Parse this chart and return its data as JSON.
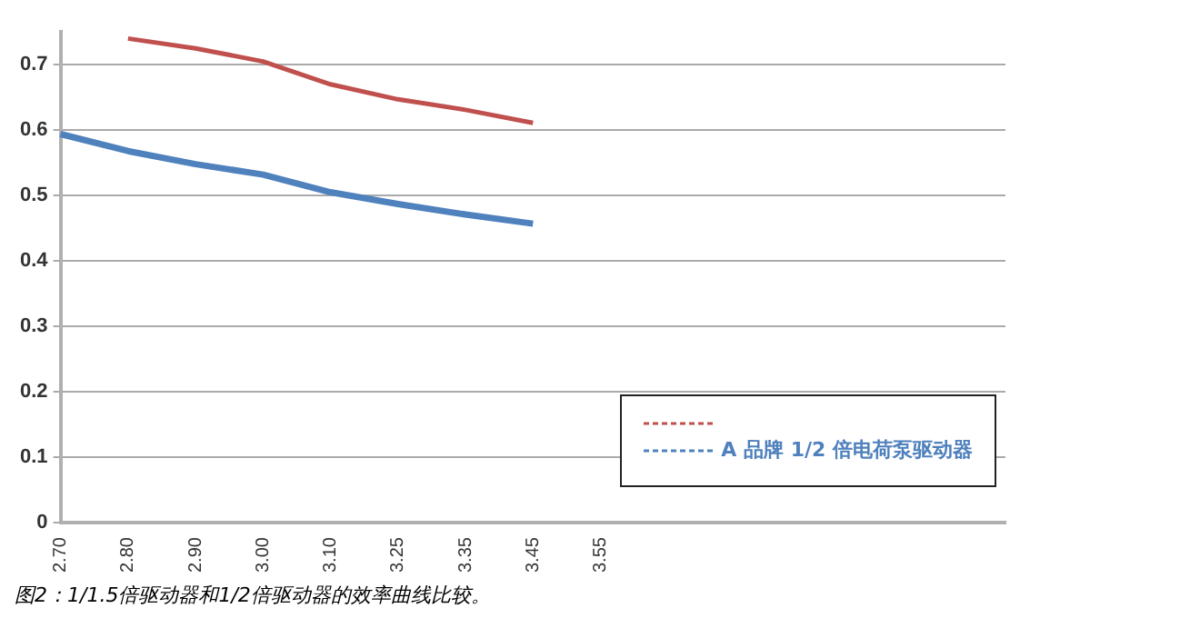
{
  "chart_data": {
    "type": "line",
    "categories": [
      "2.70",
      "2.80",
      "2.90",
      "3.00",
      "3.10",
      "3.25",
      "3.35",
      "3.45",
      "3.55",
      null,
      null,
      null,
      null,
      null,
      null
    ],
    "series": [
      {
        "color": "#c0504d",
        "values": [
          null,
          0.74,
          0.725,
          0.705,
          0.67,
          0.647,
          0.631,
          0.611,
          null,
          null,
          null,
          null,
          null,
          null,
          null
        ]
      },
      {
        "name": "A 品牌 1/2 倍电荷泵驱动器",
        "color": "#4f81bd",
        "values": [
          0.594,
          0.568,
          0.548,
          0.532,
          0.505,
          0.487,
          0.471,
          0.457,
          null,
          null,
          null,
          null,
          null,
          null,
          null
        ]
      }
    ],
    "ylim": [
      0,
      0.75
    ],
    "yticks": [
      0,
      0.1,
      0.2,
      0.3,
      0.4,
      0.5,
      0.6,
      0.7
    ],
    "grid": "y",
    "legend": "bottom right",
    "marker": "none",
    "line_style": "solid",
    "annotations": [
      "图2：1/1.5倍驱动器和1/2倍驱动器的效率曲线比较。"
    ]
  }
}
